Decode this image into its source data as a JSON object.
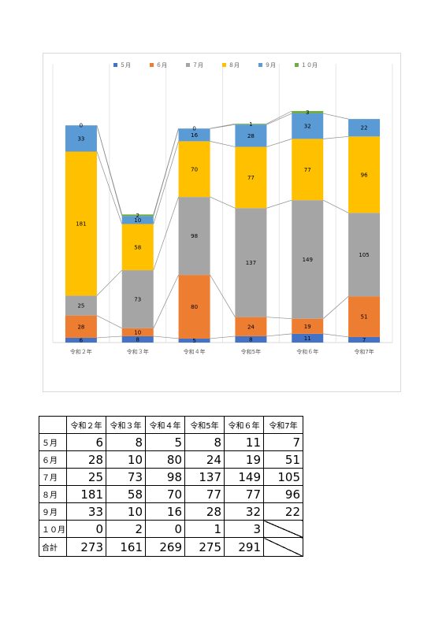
{
  "chart_data": {
    "type": "bar",
    "stacked": true,
    "categories": [
      "令和２年",
      "令和３年",
      "令和４年",
      "令和5年",
      "令和６年",
      "令和7年"
    ],
    "series": [
      {
        "name": "５月",
        "color": "#4472C4",
        "values": [
          6,
          8,
          5,
          8,
          11,
          7
        ]
      },
      {
        "name": "６月",
        "color": "#ED7D31",
        "values": [
          28,
          10,
          80,
          24,
          19,
          51
        ]
      },
      {
        "name": "７月",
        "color": "#A5A5A5",
        "values": [
          25,
          73,
          98,
          137,
          149,
          105
        ]
      },
      {
        "name": "８月",
        "color": "#FFC000",
        "values": [
          181,
          58,
          70,
          77,
          77,
          96
        ]
      },
      {
        "name": "９月",
        "color": "#5B9BD5",
        "values": [
          33,
          10,
          16,
          28,
          32,
          22
        ]
      },
      {
        "name": "１０月",
        "color": "#70AD47",
        "values": [
          0,
          2,
          0,
          1,
          3,
          null
        ]
      }
    ],
    "ylim": [
      0,
      291
    ],
    "legend": "top",
    "grid": "vertical",
    "series_lines": true
  },
  "table": {
    "headers": [
      "令和２年",
      "令和３年",
      "令和４年",
      "令和5年",
      "令和６年",
      "令和7年"
    ],
    "rows": [
      {
        "label": "５月",
        "values": [
          "6",
          "8",
          "5",
          "8",
          "11",
          "7"
        ]
      },
      {
        "label": "６月",
        "values": [
          "28",
          "10",
          "80",
          "24",
          "19",
          "51"
        ]
      },
      {
        "label": "７月",
        "values": [
          "25",
          "73",
          "98",
          "137",
          "149",
          "105"
        ]
      },
      {
        "label": "８月",
        "values": [
          "181",
          "58",
          "70",
          "77",
          "77",
          "96"
        ]
      },
      {
        "label": "９月",
        "values": [
          "33",
          "10",
          "16",
          "28",
          "32",
          "22"
        ]
      },
      {
        "label": "１０月",
        "values": [
          "0",
          "2",
          "0",
          "1",
          "3",
          null
        ]
      },
      {
        "label": "合計",
        "values": [
          "273",
          "161",
          "269",
          "275",
          "291",
          null
        ]
      }
    ]
  }
}
